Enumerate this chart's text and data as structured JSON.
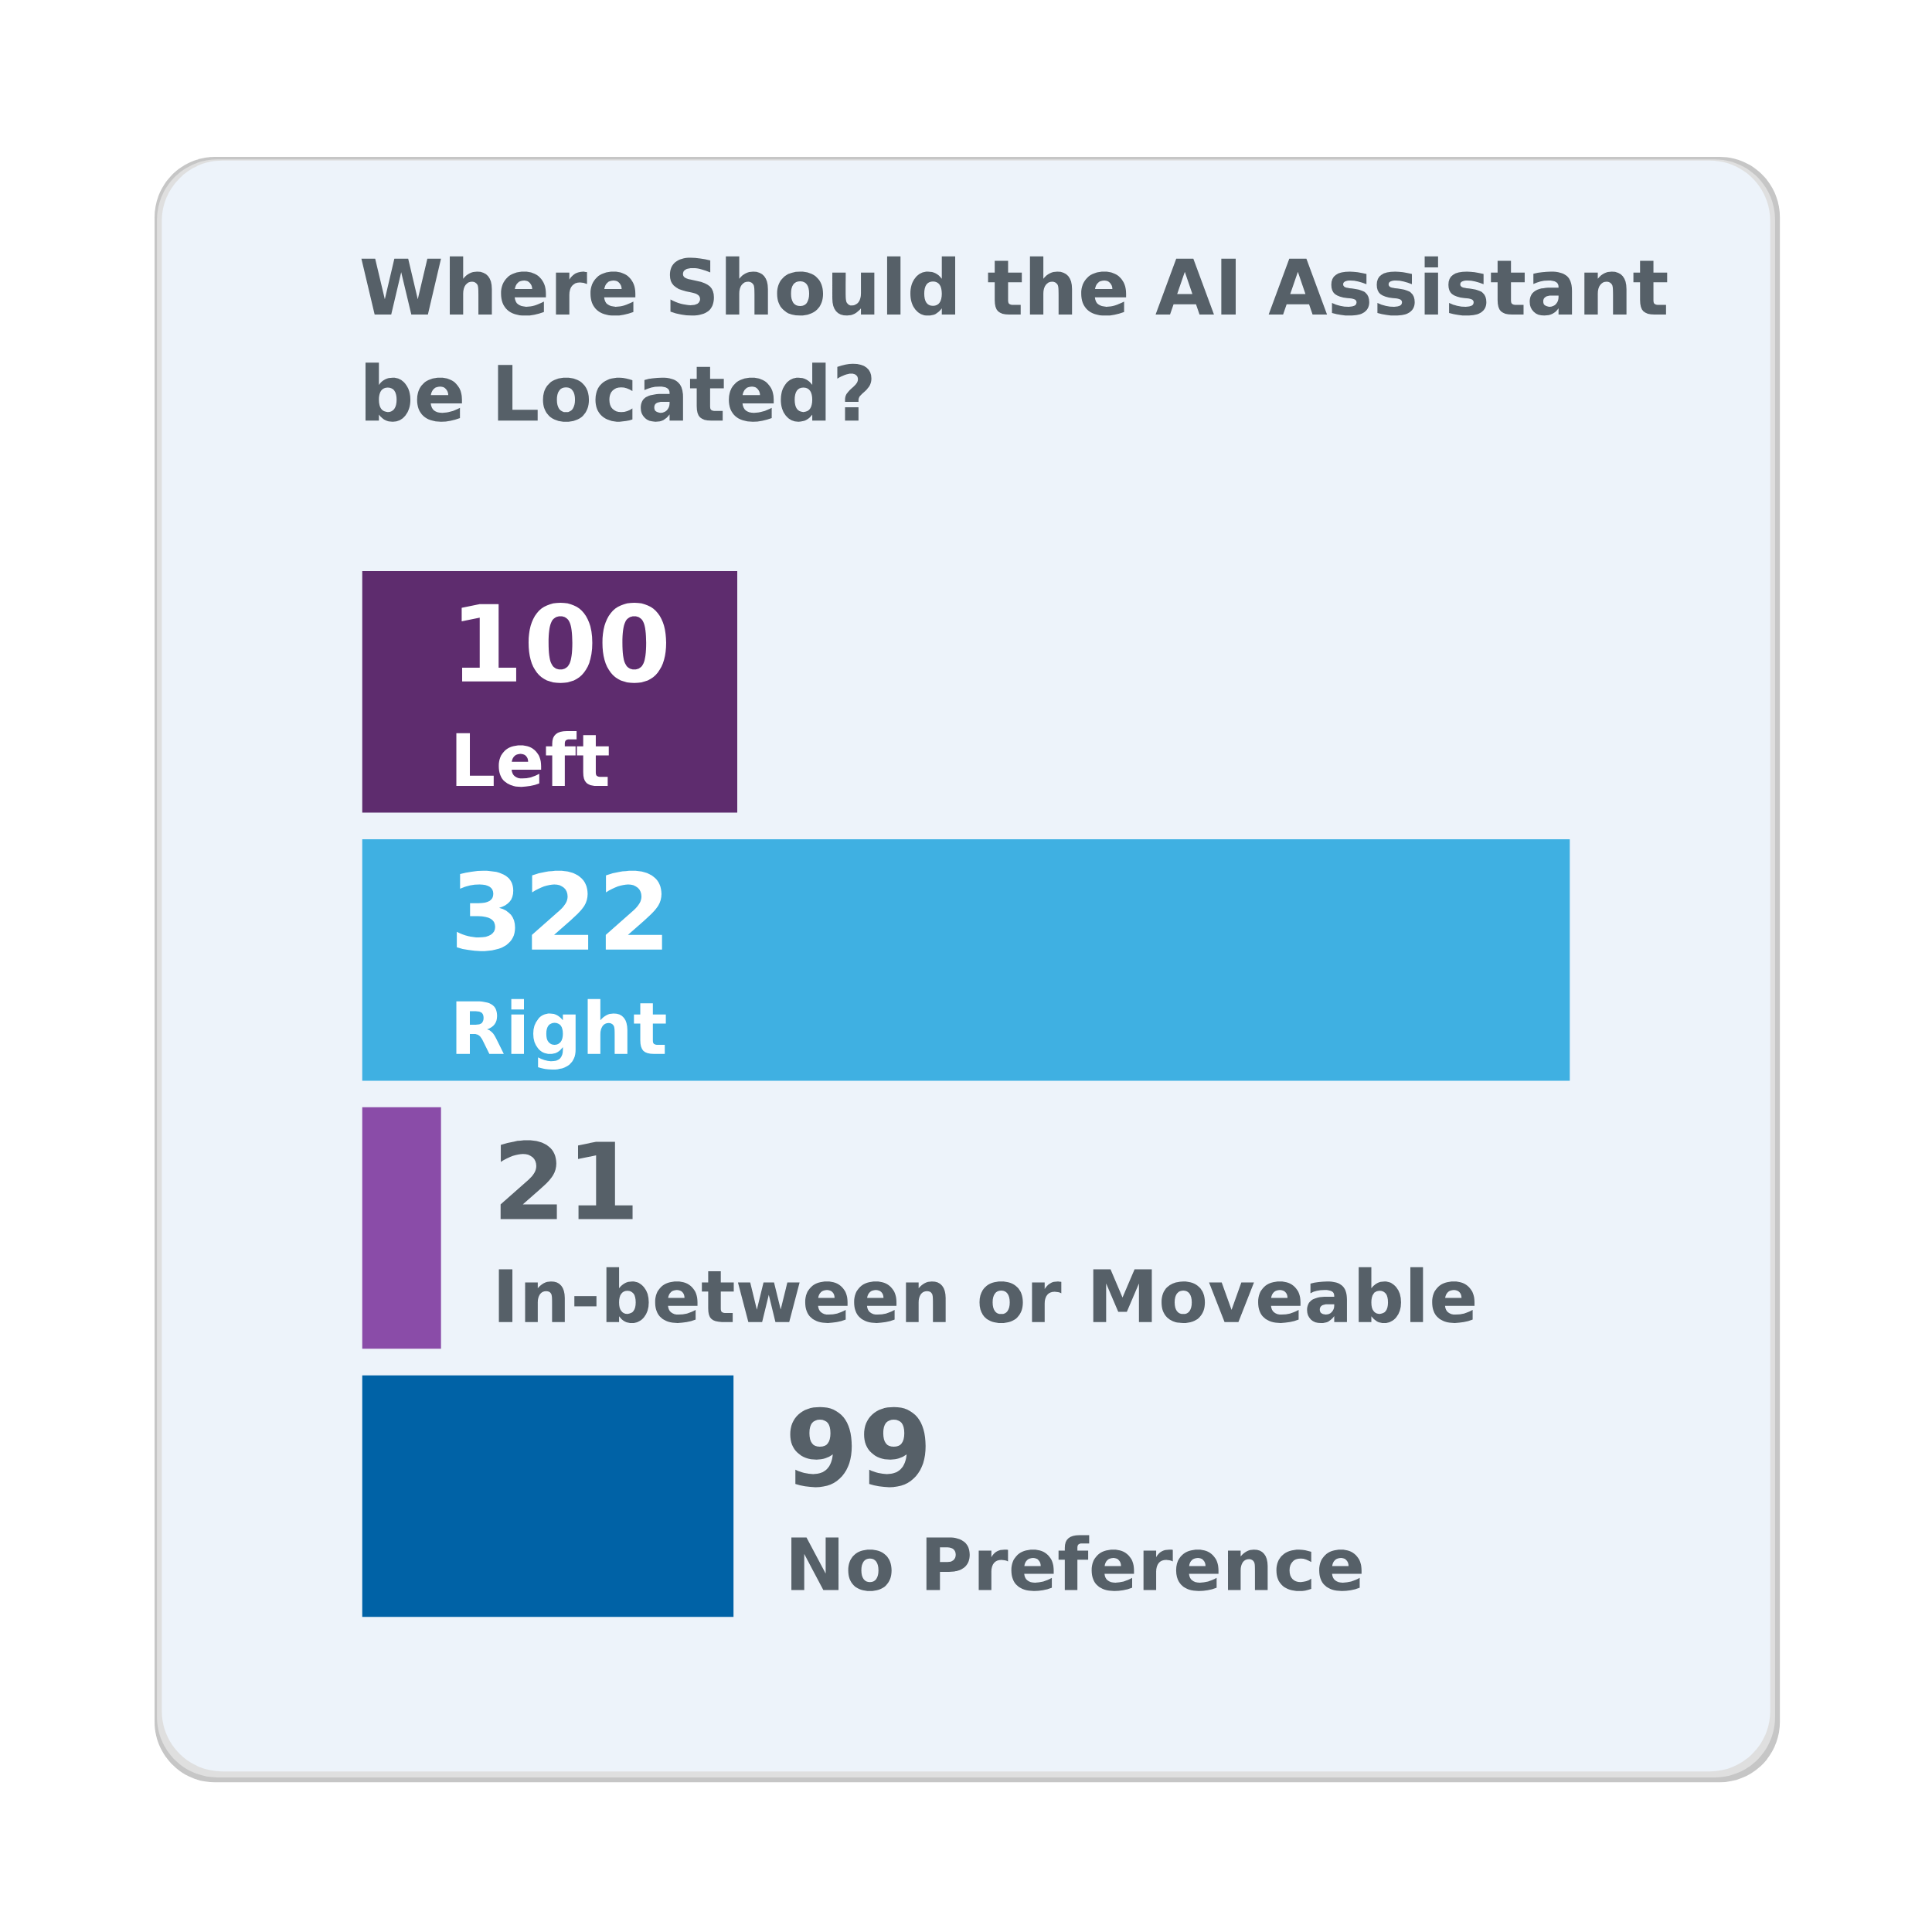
{
  "chart_data": {
    "type": "bar",
    "orientation": "horizontal",
    "title": "Where Should the AI Assistant be Located?",
    "categories": [
      "Left",
      "Right",
      "In-between or Moveable",
      "No Preference"
    ],
    "values": [
      100,
      322,
      21,
      99
    ],
    "colors": [
      "#5e2c6e",
      "#3fb0e2",
      "#8a4ca8",
      "#0062a6"
    ],
    "data_labels": true
  }
}
